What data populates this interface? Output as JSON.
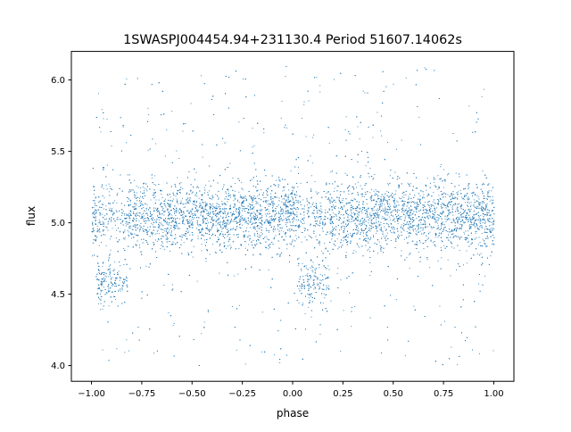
{
  "chart_data": {
    "type": "scatter",
    "title": "1SWASPJ004454.94+231130.4 Period 51607.14062s",
    "xlabel": "phase",
    "ylabel": "flux",
    "xlim": [
      -1.1,
      1.1
    ],
    "ylim": [
      3.89,
      6.2
    ],
    "xticks": [
      "−1.00",
      "−0.75",
      "−0.50",
      "−0.25",
      "0.00",
      "0.25",
      "0.50",
      "0.75",
      "1.00"
    ],
    "xtick_values": [
      -1.0,
      -0.75,
      -0.5,
      -0.25,
      0.0,
      0.25,
      0.5,
      0.75,
      1.0
    ],
    "yticks": [
      "4.0",
      "4.5",
      "5.0",
      "5.5",
      "6.0"
    ],
    "ytick_values": [
      4.0,
      4.5,
      5.0,
      5.5,
      6.0
    ],
    "grid": false,
    "legend": "none",
    "marker_color": "#1f77b4",
    "series": [
      {
        "description_values": {
          "phase_range": [
            -1.0,
            1.0
          ],
          "baseline_flux": 5.05,
          "dense_band_flux": [
            4.8,
            5.3
          ],
          "flux_range": [
            4.0,
            6.1
          ],
          "eclipse_phases": [
            -0.9,
            0.1
          ],
          "eclipse_flux": 4.6
        }
      }
    ]
  }
}
